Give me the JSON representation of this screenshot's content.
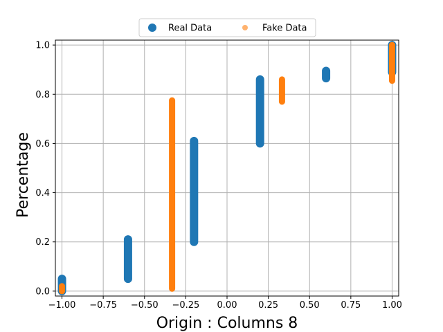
{
  "chart_data": {
    "type": "scatter",
    "xlabel": "Origin : Columns 8",
    "ylabel": "Percentage",
    "xlim": [
      -1.04,
      1.04
    ],
    "ylim": [
      -0.02,
      1.02
    ],
    "xticks": [
      -1.0,
      -0.75,
      -0.5,
      -0.25,
      0.0,
      0.25,
      0.5,
      0.75,
      1.0
    ],
    "xtick_labels": [
      "−1.00",
      "−0.75",
      "−0.50",
      "−0.25",
      "0.00",
      "0.25",
      "0.50",
      "0.75",
      "1.00"
    ],
    "yticks": [
      0.0,
      0.2,
      0.4,
      0.6,
      0.8,
      1.0
    ],
    "ytick_labels": [
      "0.0",
      "0.2",
      "0.4",
      "0.6",
      "0.8",
      "1.0"
    ],
    "grid": true,
    "legend_position": "top-center",
    "series": [
      {
        "name": "Real Data",
        "color": "#1f77b4",
        "marker_size": "large",
        "segments": [
          {
            "x": -1.0,
            "y_min": 0.0,
            "y_max": 0.05
          },
          {
            "x": -0.6,
            "y_min": 0.05,
            "y_max": 0.21
          },
          {
            "x": -0.2,
            "y_min": 0.2,
            "y_max": 0.61
          },
          {
            "x": 0.2,
            "y_min": 0.6,
            "y_max": 0.86
          },
          {
            "x": 0.6,
            "y_min": 0.865,
            "y_max": 0.895
          },
          {
            "x": 1.0,
            "y_min": 0.89,
            "y_max": 1.0
          }
        ]
      },
      {
        "name": "Fake Data",
        "color": "#ff7f0e",
        "marker_size": "small",
        "segments": [
          {
            "x": -1.0,
            "y_min": 0.0,
            "y_max": 0.02
          },
          {
            "x": -0.333,
            "y_min": 0.01,
            "y_max": 0.775
          },
          {
            "x": 0.333,
            "y_min": 0.77,
            "y_max": 0.86
          },
          {
            "x": 1.0,
            "y_min": 0.855,
            "y_max": 1.0
          }
        ]
      }
    ]
  }
}
